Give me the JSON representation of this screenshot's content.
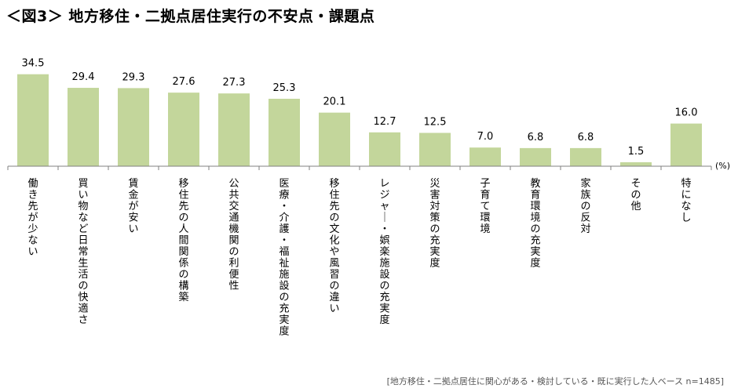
{
  "title": "＜図3＞ 地方移住・二拠点居住実行の不安点・課題点",
  "unit_label": "(%)",
  "footnote": "[地方移住・二拠点居住に関心がある・検討している・既に実行した人ベース n=1485]",
  "colors": {
    "bar": "#c3d69b",
    "axis": "#808080"
  },
  "chart_data": {
    "type": "bar",
    "title": "＜図3＞ 地方移住・二拠点居住実行の不安点・課題点",
    "xlabel": "",
    "ylabel": "",
    "unit": "(%)",
    "ylim": [
      0,
      40
    ],
    "grid": false,
    "categories": [
      "働き先が少ない",
      "買い物など日常生活の快適さ",
      "賃金が安い",
      "移住先の人間関係の構築",
      "公共交通機関の利便性",
      "医療・介護・福祉施設の充実度",
      "移住先の文化や風習の違い",
      "レジャー・娯楽施設の充実度",
      "災害対策の充実度",
      "子育て環境",
      "教育環境の充実度",
      "家族の反対",
      "その他",
      "特になし"
    ],
    "values": [
      34.5,
      29.4,
      29.3,
      27.6,
      27.3,
      25.3,
      20.1,
      12.7,
      12.5,
      7.0,
      6.8,
      6.8,
      1.5,
      16.0
    ],
    "value_labels": [
      "34.5",
      "29.4",
      "29.3",
      "27.6",
      "27.3",
      "25.3",
      "20.1",
      "12.7",
      "12.5",
      "7.0",
      "6.8",
      "6.8",
      "1.5",
      "16.0"
    ]
  }
}
